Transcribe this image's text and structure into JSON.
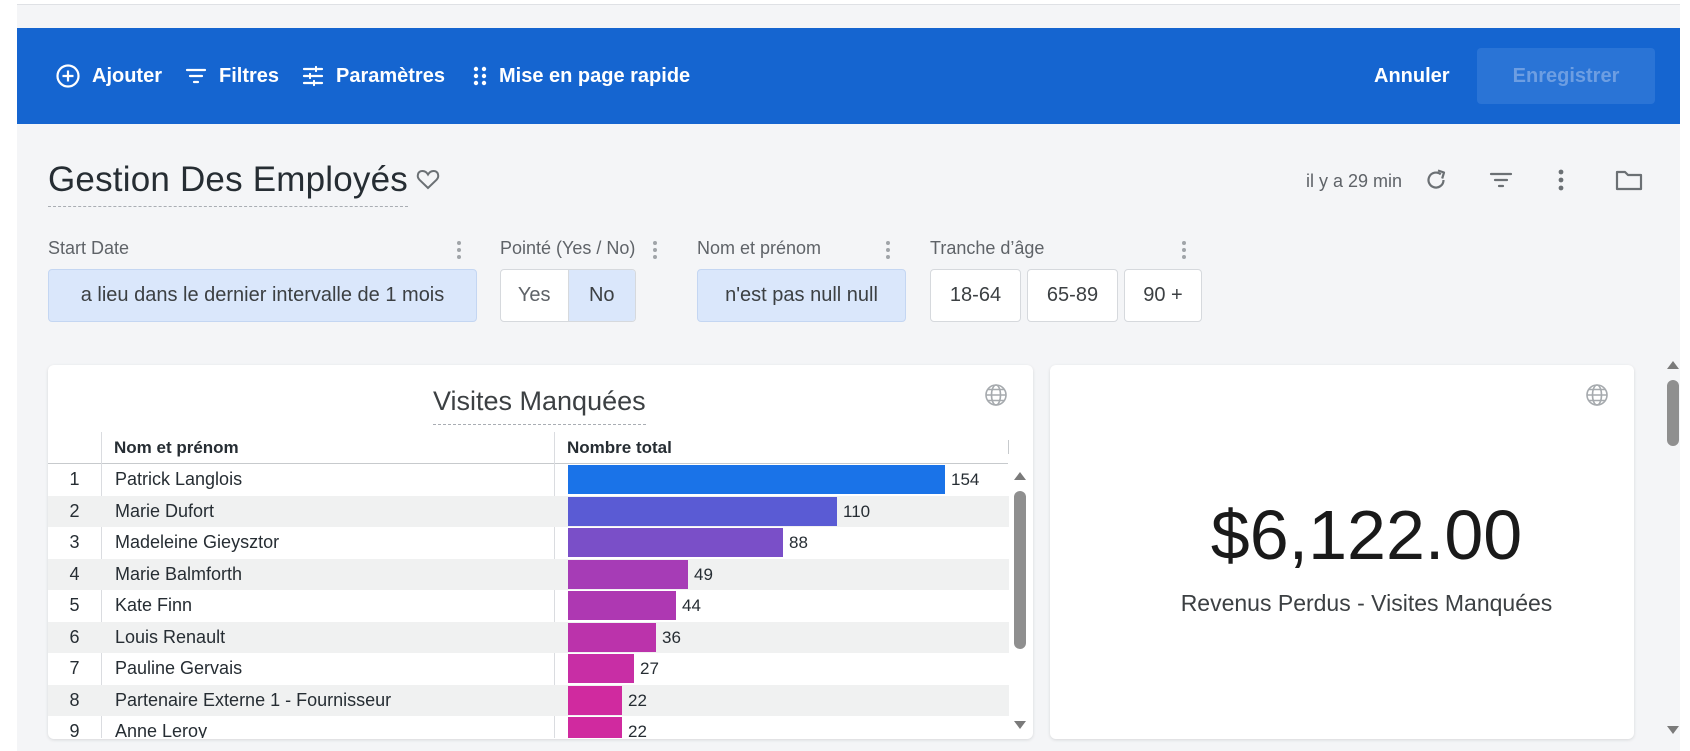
{
  "toolbar": {
    "add_label": "Ajouter",
    "filters_label": "Filtres",
    "params_label": "Paramètres",
    "layout_label": "Mise en page rapide",
    "cancel_label": "Annuler",
    "save_label": "Enregistrer",
    "bg_color": "#1565d0"
  },
  "dashboard": {
    "title": "Gestion Des Employés",
    "updated": "il y a 29 min"
  },
  "filters": {
    "start_date": {
      "label": "Start Date",
      "value": "a lieu dans le dernier intervalle de 1 mois"
    },
    "pointe": {
      "label": "Pointé (Yes / No)",
      "options": [
        "Yes",
        "No"
      ],
      "selected": "No"
    },
    "nom": {
      "label": "Nom et prénom",
      "value": "n'est pas null null"
    },
    "age": {
      "label": "Tranche d’âge",
      "options": [
        "18-64",
        "65-89",
        "90 +"
      ]
    }
  },
  "table_card": {
    "title": "Visites Manquées",
    "columns": [
      "Nom et prénom",
      "Nombre total"
    ],
    "rows": [
      {
        "rank": "1",
        "name": "Patrick Langlois",
        "total": 154,
        "color": "#1a73e8"
      },
      {
        "rank": "2",
        "name": "Marie Dufort",
        "total": 110,
        "color": "#5a5bd4"
      },
      {
        "rank": "3",
        "name": "Madeleine Gieysztor",
        "total": 88,
        "color": "#7a4fc8"
      },
      {
        "rank": "4",
        "name": "Marie Balmforth",
        "total": 49,
        "color": "#a63cb6"
      },
      {
        "rank": "5",
        "name": "Kate Finn",
        "total": 44,
        "color": "#ae38b2"
      },
      {
        "rank": "6",
        "name": "Louis Renault",
        "total": 36,
        "color": "#bb33ab"
      },
      {
        "rank": "7",
        "name": "Pauline Gervais",
        "total": 27,
        "color": "#c82ea5"
      },
      {
        "rank": "8",
        "name": "Partenaire Externe 1 - Fournisseur",
        "total": 22,
        "color": "#d02a9f"
      },
      {
        "rank": "9",
        "name": "Anne Leroy",
        "total": 22,
        "color": "#d02a9f"
      }
    ],
    "max_value": 154
  },
  "kpi_card": {
    "value": "$6,122.00",
    "label": "Revenus Perdus - Visites Manquées"
  }
}
